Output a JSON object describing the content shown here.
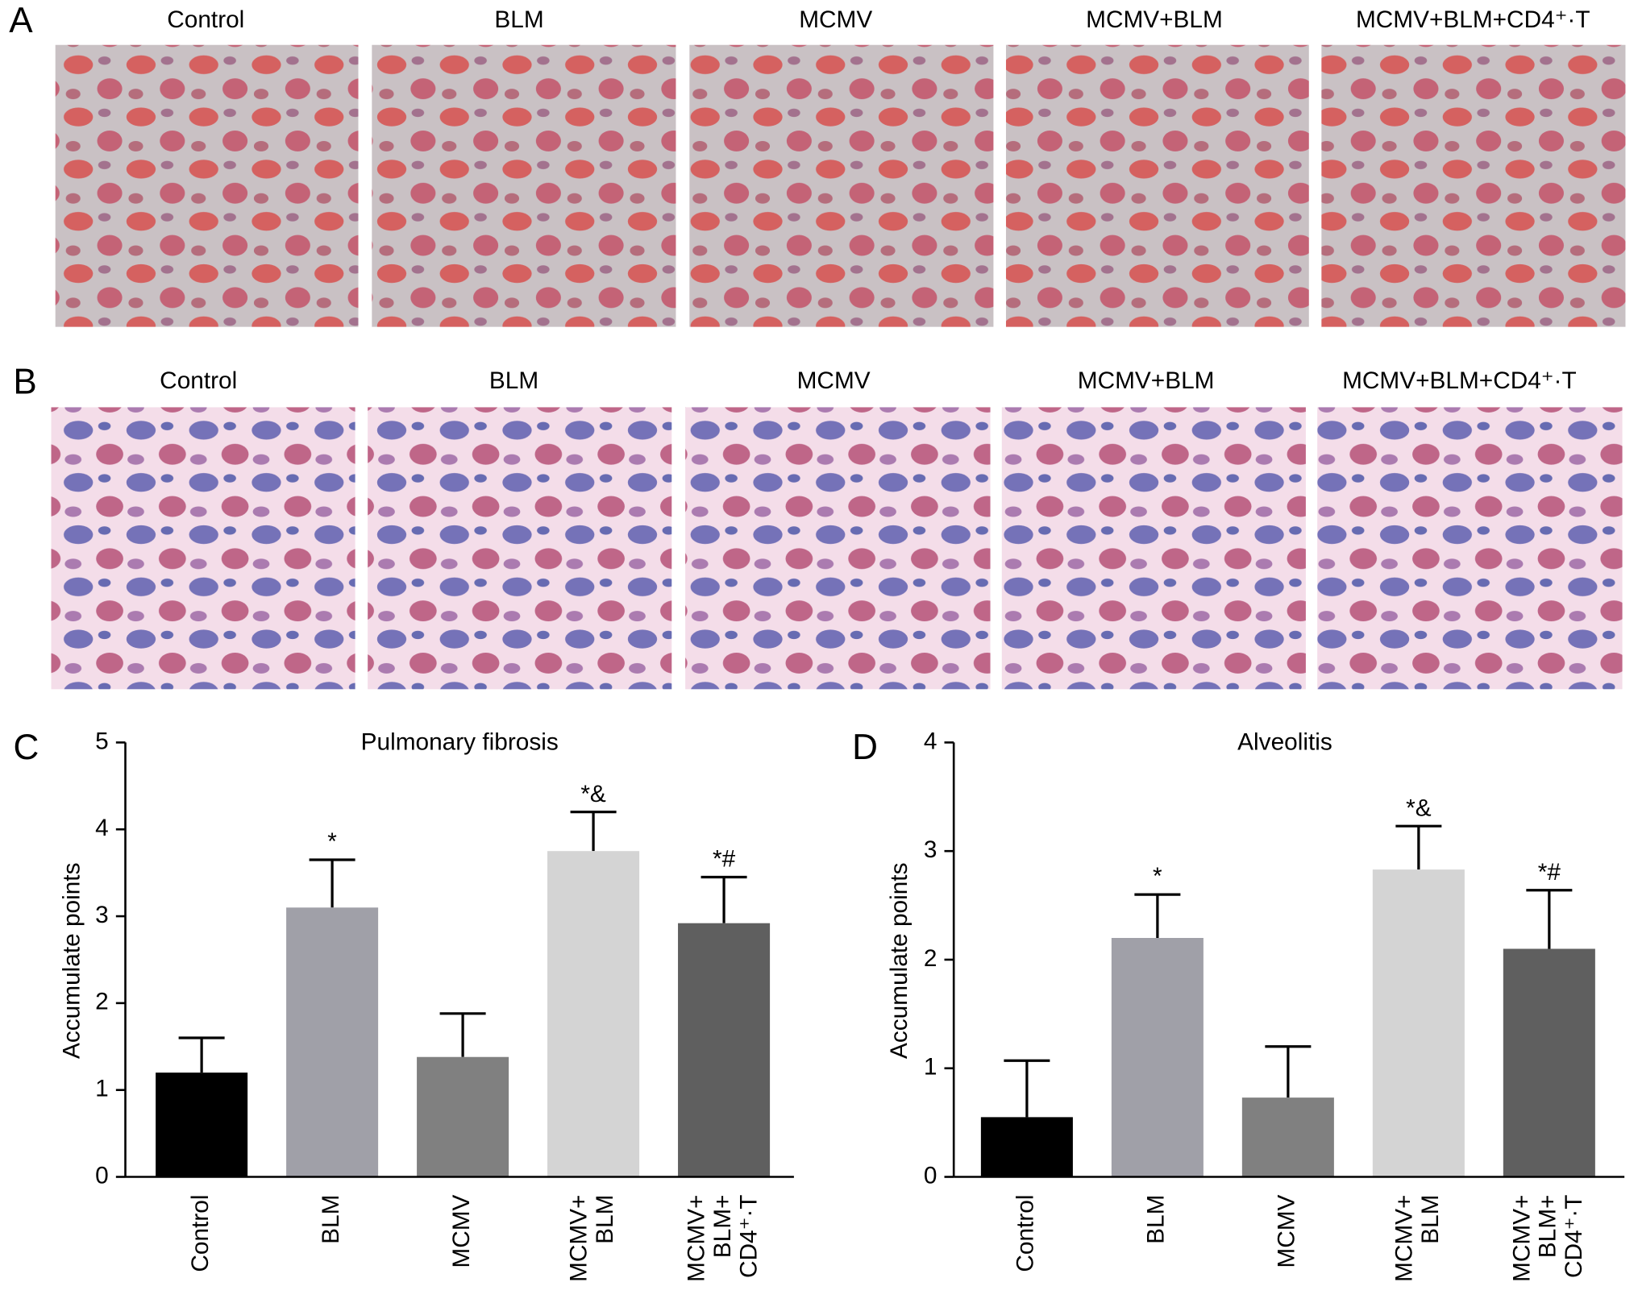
{
  "panels": [
    {
      "label": "A",
      "titles": [
        "Control",
        "BLM",
        "MCMV",
        "MCMV+BLM",
        "MCMV+BLM+CD4⁺·T"
      ]
    },
    {
      "label": "B",
      "titles": [
        "Control",
        "BLM",
        "MCMV",
        "MCMV+BLM",
        "MCMV+BLM+CD4⁺·T"
      ]
    }
  ],
  "chart_data": [
    {
      "type": "bar",
      "panel_label": "C",
      "title": "Pulmonary fibrosis",
      "y_label": "Accumulate points",
      "categories": [
        [
          "Control"
        ],
        [
          "BLM"
        ],
        [
          "MCMV"
        ],
        [
          "MCMV+",
          "BLM"
        ],
        [
          "MCMV+",
          "BLM+",
          "CD4⁺·T"
        ]
      ],
      "values": [
        1.2,
        3.1,
        1.38,
        3.75,
        2.92
      ],
      "errors": [
        0.4,
        0.55,
        0.5,
        0.45,
        0.53
      ],
      "annotations": [
        null,
        "*",
        null,
        "*&",
        "*#"
      ],
      "colors": [
        "#000000",
        "#a0a0a8",
        "#808080",
        "#d4d4d4",
        "#5f5f5f"
      ],
      "ylim": [
        0,
        5
      ],
      "yticks": [
        0,
        1,
        2,
        3,
        4,
        5
      ]
    },
    {
      "type": "bar",
      "panel_label": "D",
      "title": "Alveolitis",
      "y_label": "Accumulate points",
      "categories": [
        [
          "Control"
        ],
        [
          "BLM"
        ],
        [
          "MCMV"
        ],
        [
          "MCMV+",
          "BLM"
        ],
        [
          "MCMV+",
          "BLM+",
          "CD4⁺·T"
        ]
      ],
      "values": [
        0.55,
        2.2,
        0.73,
        2.83,
        2.1
      ],
      "errors": [
        0.52,
        0.4,
        0.47,
        0.4,
        0.54
      ],
      "annotations": [
        null,
        "*",
        null,
        "*&",
        "*#"
      ],
      "colors": [
        "#000000",
        "#a0a0a8",
        "#808080",
        "#d4d4d4",
        "#5f5f5f"
      ],
      "ylim": [
        0,
        4
      ],
      "yticks": [
        0,
        1,
        2,
        3,
        4
      ]
    }
  ]
}
